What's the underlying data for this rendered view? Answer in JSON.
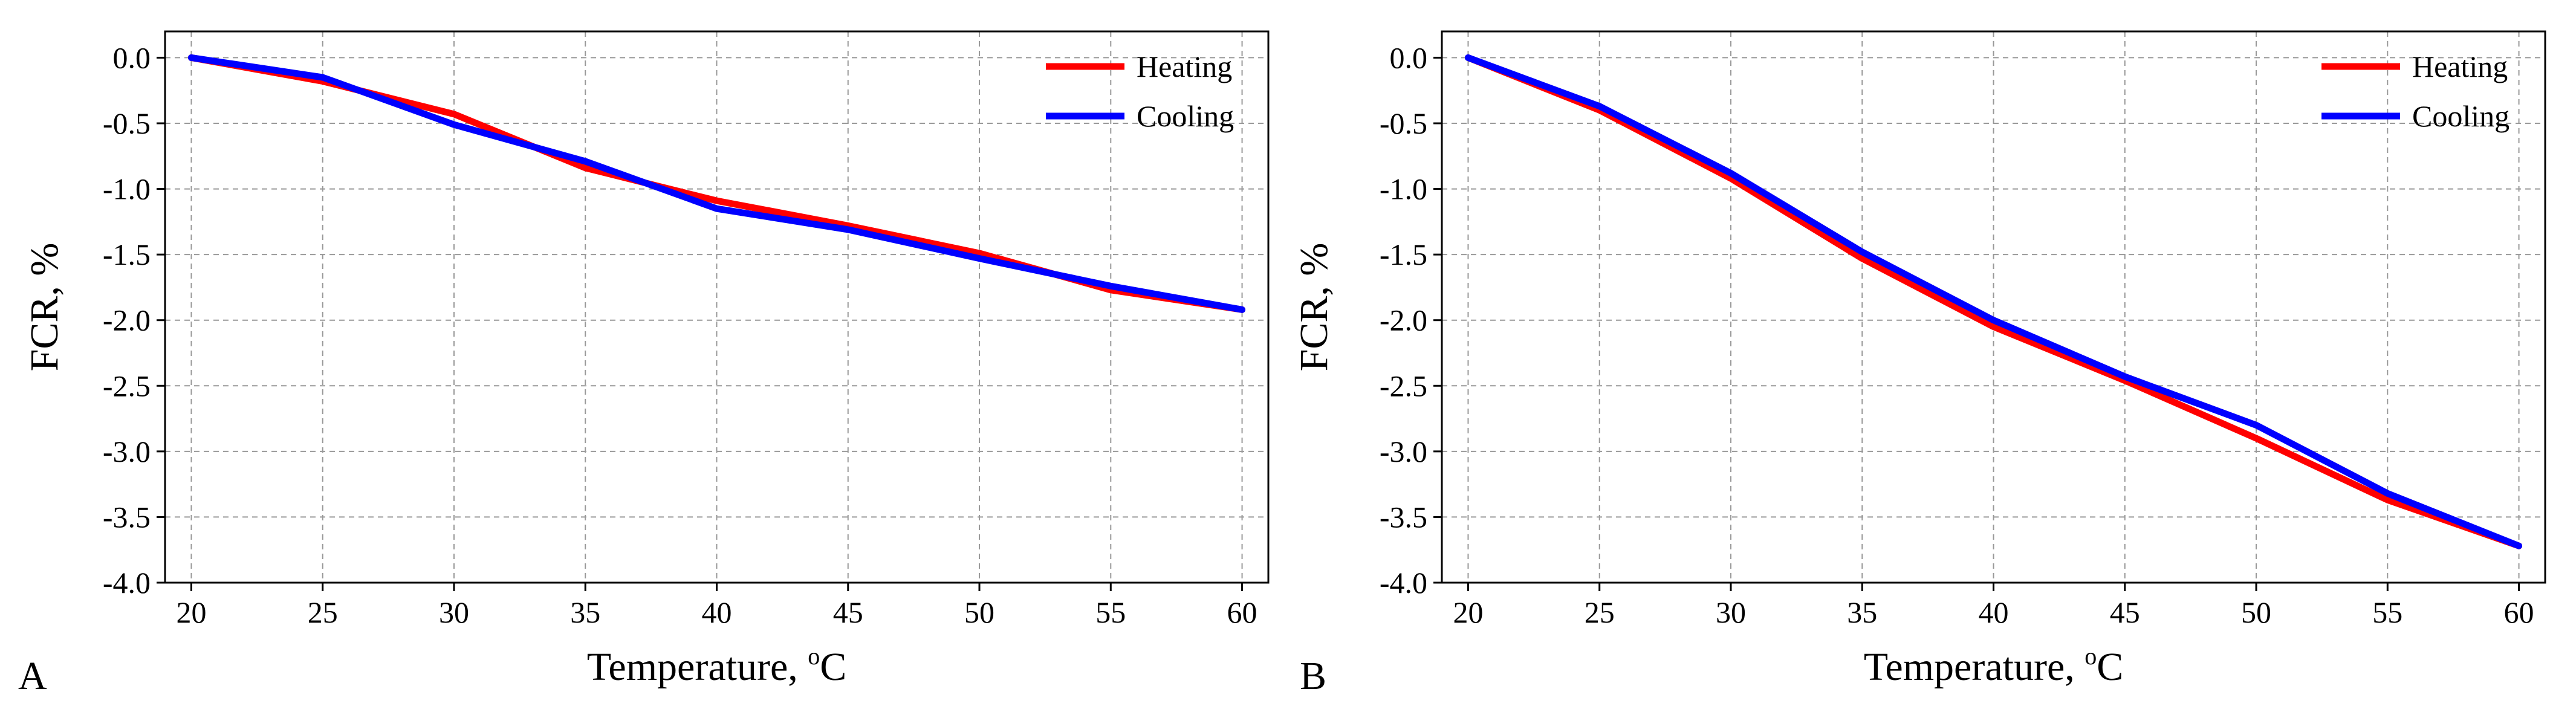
{
  "colors": {
    "heating": "#ff0000",
    "cooling": "#0000ff",
    "grid": "#999999",
    "axis": "#000000"
  },
  "chart_data": [
    {
      "type": "line",
      "panel_label": "A",
      "xlabel_main": "Temperature, ",
      "xlabel_sup": "o",
      "xlabel_unit": "C",
      "ylabel": "FCR, %",
      "x": [
        20,
        25,
        30,
        35,
        40,
        45,
        50,
        55,
        60
      ],
      "xlim": [
        19,
        61
      ],
      "ylim": [
        -4.0,
        0.2
      ],
      "xticks": [
        20,
        25,
        30,
        35,
        40,
        45,
        50,
        55,
        60
      ],
      "yticks": [
        0.0,
        -0.5,
        -1.0,
        -1.5,
        -2.0,
        -2.5,
        -3.0,
        -3.5,
        -4.0
      ],
      "xtick_labels": [
        "20",
        "25",
        "30",
        "35",
        "40",
        "45",
        "50",
        "55",
        "60"
      ],
      "ytick_labels": [
        "0.0",
        "-0.5",
        "-1.0",
        "-1.5",
        "-2.0",
        "-2.5",
        "-3.0",
        "-3.5",
        "-4.0"
      ],
      "grid": true,
      "legend_position": "top-right",
      "series": [
        {
          "name": "Heating",
          "key": "heating",
          "values": [
            0.0,
            -0.18,
            -0.43,
            -0.84,
            -1.09,
            -1.28,
            -1.49,
            -1.77,
            -1.92
          ]
        },
        {
          "name": "Cooling",
          "key": "cooling",
          "values": [
            0.0,
            -0.15,
            -0.51,
            -0.79,
            -1.15,
            -1.31,
            -1.53,
            -1.74,
            -1.92
          ]
        }
      ]
    },
    {
      "type": "line",
      "panel_label": "B",
      "xlabel_main": "Temperature, ",
      "xlabel_sup": "o",
      "xlabel_unit": "C",
      "ylabel": "FCR, %",
      "x": [
        20,
        25,
        30,
        35,
        40,
        45,
        50,
        55,
        60
      ],
      "xlim": [
        19,
        61
      ],
      "ylim": [
        -4.0,
        0.2
      ],
      "xticks": [
        20,
        25,
        30,
        35,
        40,
        45,
        50,
        55,
        60
      ],
      "yticks": [
        0.0,
        -0.5,
        -1.0,
        -1.5,
        -2.0,
        -2.5,
        -3.0,
        -3.5,
        -4.0
      ],
      "xtick_labels": [
        "20",
        "25",
        "30",
        "35",
        "40",
        "45",
        "50",
        "55",
        "60"
      ],
      "ytick_labels": [
        "0.0",
        "-0.5",
        "-1.0",
        "-1.5",
        "-2.0",
        "-2.5",
        "-3.0",
        "-3.5",
        "-4.0"
      ],
      "grid": true,
      "legend_position": "top-right",
      "series": [
        {
          "name": "Heating",
          "key": "heating",
          "values": [
            0.0,
            -0.4,
            -0.92,
            -1.53,
            -2.05,
            -2.46,
            -2.9,
            -3.37,
            -3.72
          ]
        },
        {
          "name": "Cooling",
          "key": "cooling",
          "values": [
            0.0,
            -0.37,
            -0.88,
            -1.48,
            -2.0,
            -2.43,
            -2.8,
            -3.32,
            -3.72
          ]
        }
      ]
    }
  ]
}
